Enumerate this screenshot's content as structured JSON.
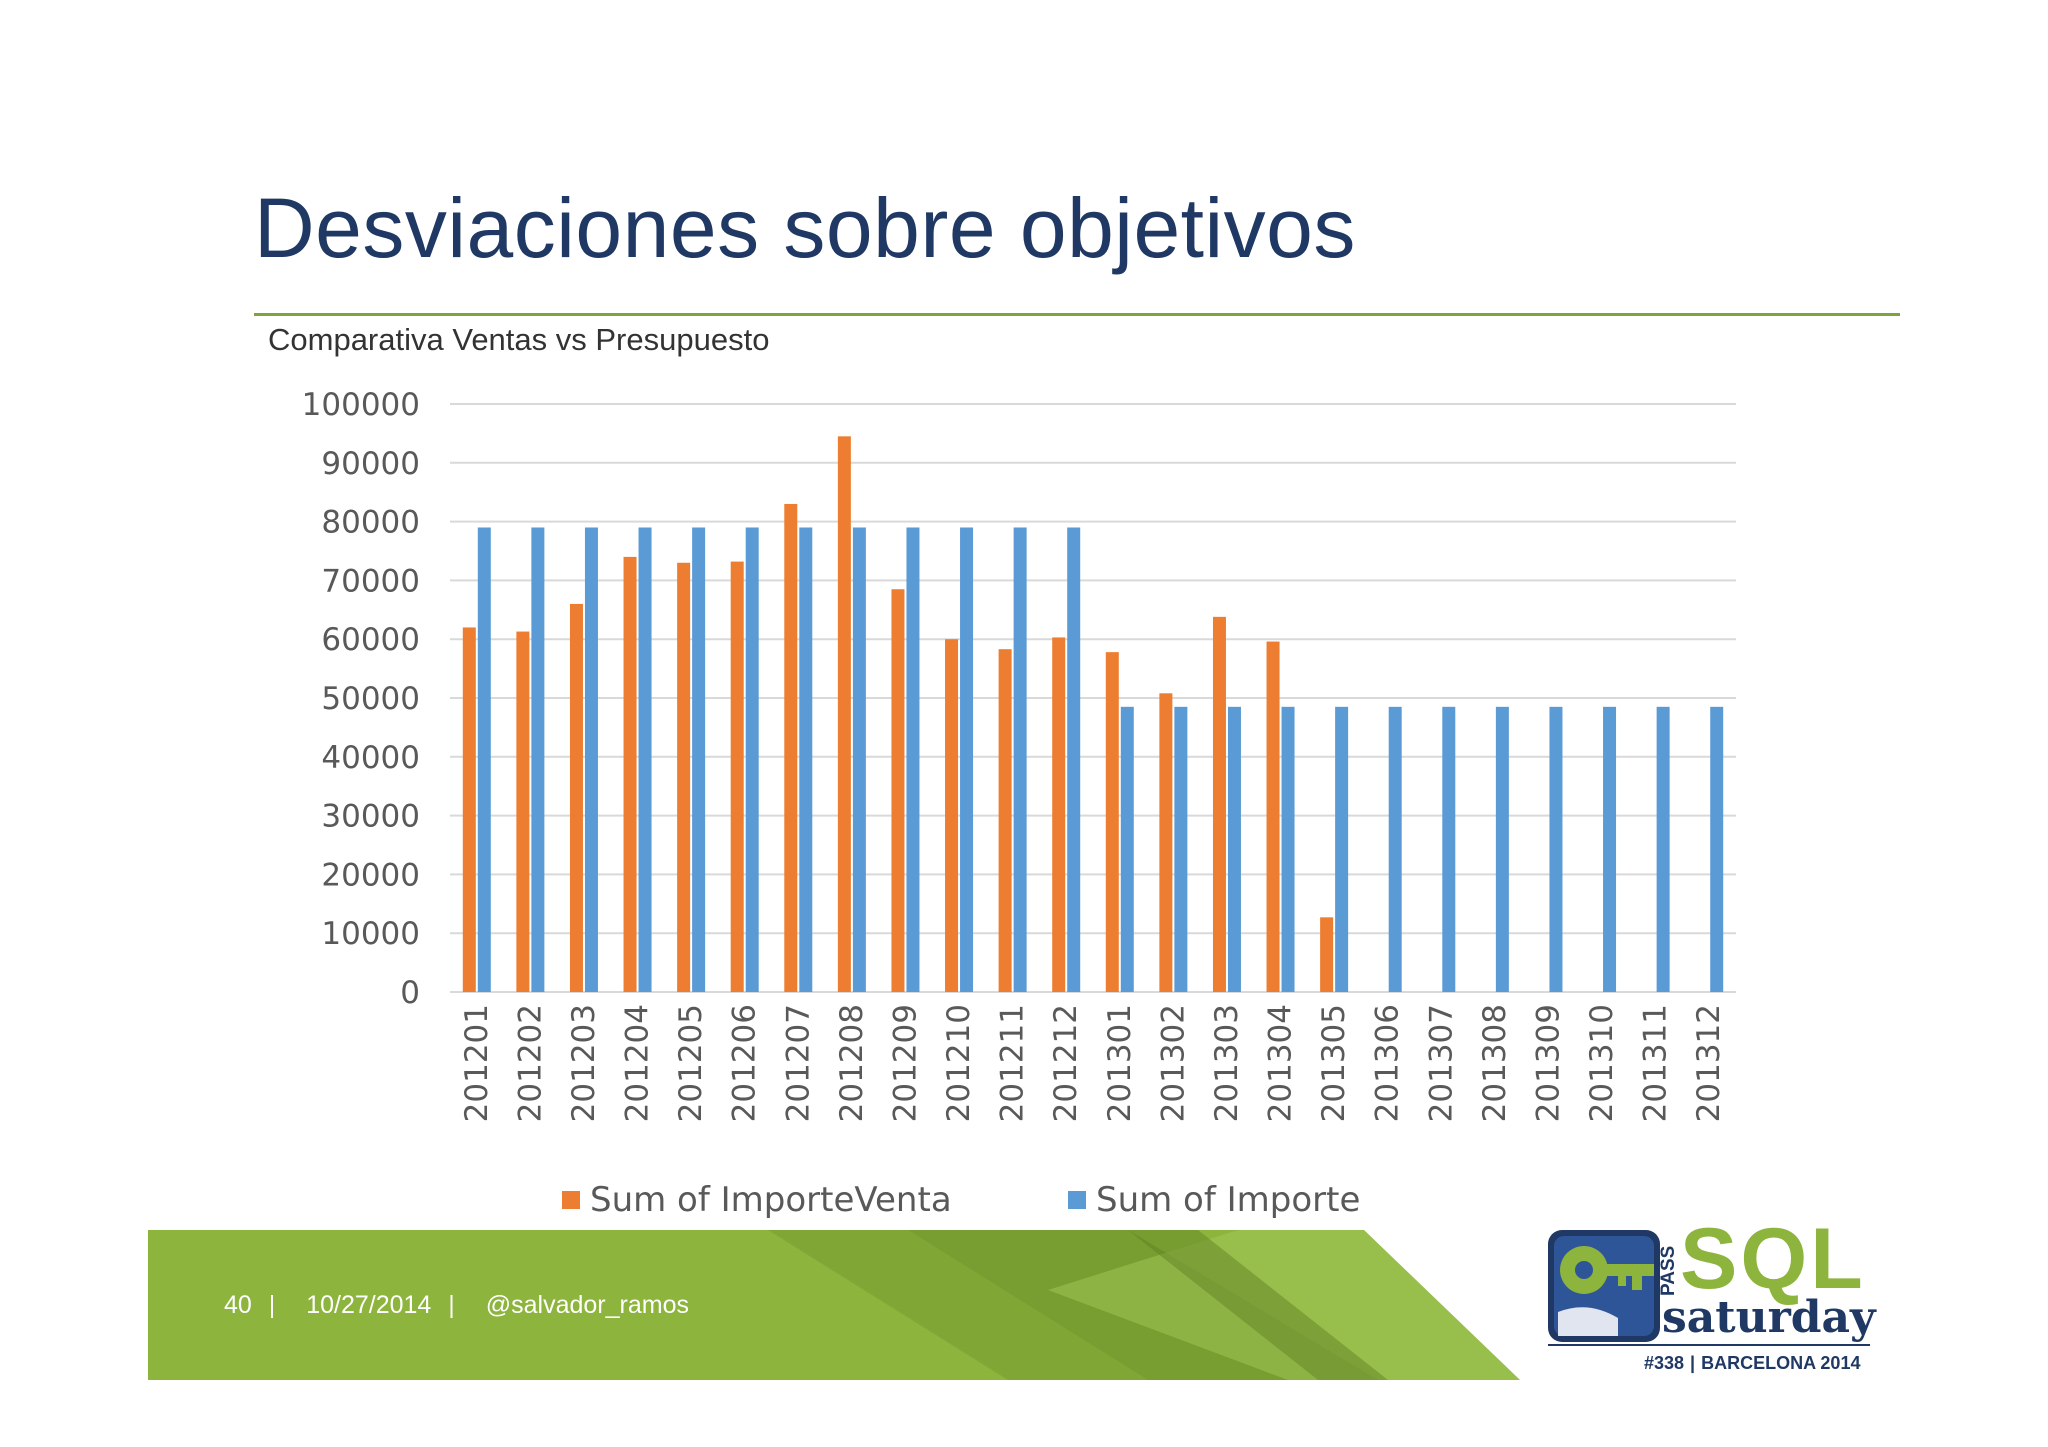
{
  "slide": {
    "title": "Desviaciones sobre objetivos"
  },
  "footer": {
    "page_number": "40",
    "separator": "|",
    "date": "10/27/2014",
    "author": "@salvador_ramos"
  },
  "logo": {
    "sql": "SQL",
    "pass": "PASS",
    "saturday": "saturday",
    "event_number": "#338",
    "event_location": "BARCELONA 2014"
  },
  "colors": {
    "title": "#1f3864",
    "accent_green": "#7ea53a",
    "series_venta": "#ed7d31",
    "series_importe": "#5b9bd5"
  },
  "chart_data": {
    "type": "bar",
    "title": "Comparativa Ventas vs Presupuesto",
    "xlabel": "",
    "ylabel": "",
    "ylim": [
      0,
      100000
    ],
    "yticks": [
      0,
      10000,
      20000,
      30000,
      40000,
      50000,
      60000,
      70000,
      80000,
      90000,
      100000
    ],
    "grid": true,
    "legend_position": "bottom",
    "categories": [
      "201201",
      "201202",
      "201203",
      "201204",
      "201205",
      "201206",
      "201207",
      "201208",
      "201209",
      "201210",
      "201211",
      "201212",
      "201301",
      "201302",
      "201303",
      "201304",
      "201305",
      "201306",
      "201307",
      "201308",
      "201309",
      "201310",
      "201311",
      "201312"
    ],
    "series": [
      {
        "name": "Sum of ImporteVenta",
        "color": "#ed7d31",
        "values": [
          62000,
          61300,
          66000,
          74000,
          73000,
          73200,
          83000,
          94500,
          68500,
          60000,
          58300,
          60300,
          57800,
          50800,
          63800,
          59600,
          12700,
          null,
          null,
          null,
          null,
          null,
          null,
          null
        ]
      },
      {
        "name": "Sum of Importe",
        "color": "#5b9bd5",
        "values": [
          79000,
          79000,
          79000,
          79000,
          79000,
          79000,
          79000,
          79000,
          79000,
          79000,
          79000,
          79000,
          48500,
          48500,
          48500,
          48500,
          48500,
          48500,
          48500,
          48500,
          48500,
          48500,
          48500,
          48500
        ]
      }
    ]
  }
}
